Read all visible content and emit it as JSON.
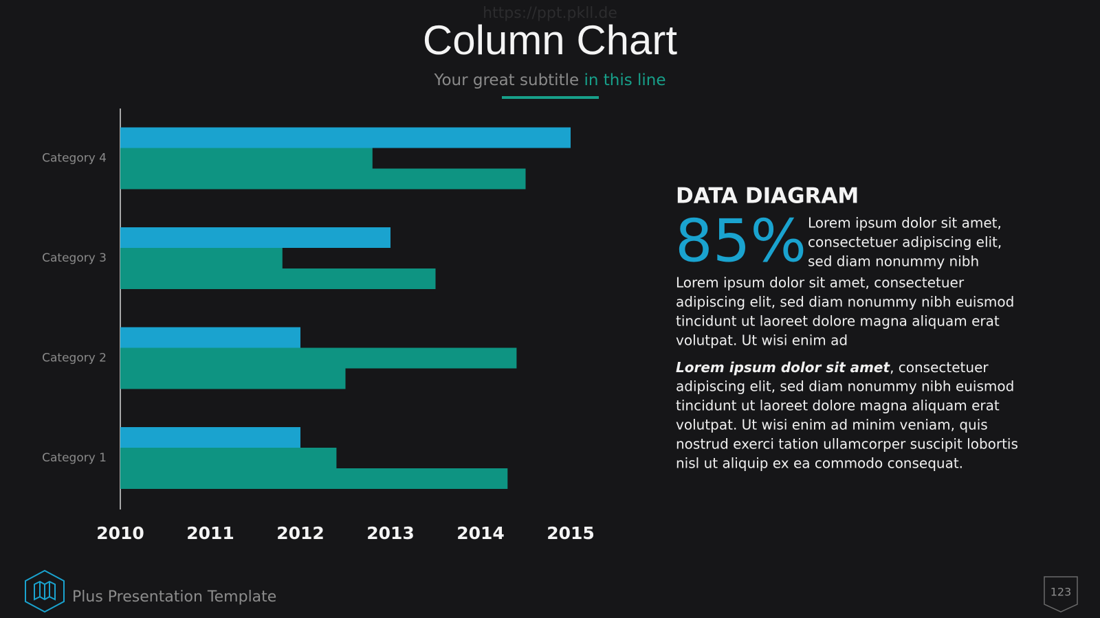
{
  "watermark": "https://ppt.pkll.de",
  "header": {
    "title": "Column Chart",
    "subtitle_plain": "Your great subtitle",
    "subtitle_accent": "in this line"
  },
  "chart_data": {
    "type": "bar",
    "orientation": "horizontal",
    "categories": [
      "Category 1",
      "Category 2",
      "Category 3",
      "Category 4"
    ],
    "series": [
      {
        "color": "#1aa3cf",
        "values": [
          2012.0,
          2012.0,
          2013.0,
          2015.0
        ]
      },
      {
        "color": "#0e9482",
        "values": [
          2012.4,
          2014.4,
          2011.8,
          2012.8
        ]
      },
      {
        "color": "#0e9482",
        "values": [
          2014.3,
          2012.5,
          2013.5,
          2014.5
        ]
      }
    ],
    "xlim": [
      2010,
      2015
    ],
    "xticks": [
      2010,
      2011,
      2012,
      2013,
      2014,
      2015
    ]
  },
  "panel": {
    "heading": "DATA DIAGRAM",
    "big_number": "85%",
    "side_lines": [
      "Lorem ipsum dolor sit amet,",
      "consectetuer adipiscing elit,",
      "sed diam nonummy nibh"
    ],
    "paragraph1": [
      "Lorem ipsum dolor sit amet, consectetuer",
      "adipiscing elit, sed diam nonummy nibh euismod",
      "tincidunt ut laoreet dolore magna aliquam erat",
      "volutpat. Ut wisi enim ad"
    ],
    "paragraph2_lead": {
      "bold": "Lorem ipsum dolor sit amet",
      "rest": ", consectetuer"
    },
    "paragraph2": [
      "adipiscing elit, sed diam nonummy nibh euismod",
      "tincidunt ut laoreet dolore magna aliquam erat",
      "volutpat. Ut wisi enim ad minim veniam, quis",
      "nostrud exerci tation ullamcorper suscipit lobortis",
      "nisl ut aliquip ex ea commodo consequat."
    ]
  },
  "footer": {
    "brand": "Plus Presentation Template",
    "page": "123"
  }
}
